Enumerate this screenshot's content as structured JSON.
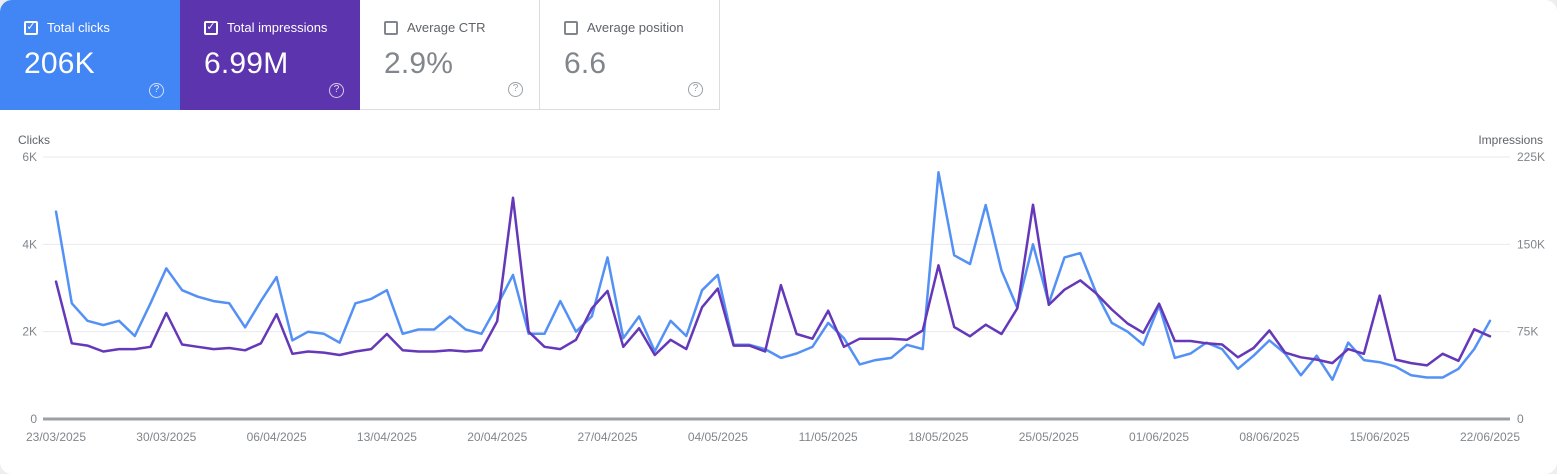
{
  "widget": "search-performance",
  "metrics": [
    {
      "label": "Total clicks",
      "value": "206K",
      "checked": true,
      "bg": "#4285f4"
    },
    {
      "label": "Total impressions",
      "value": "6.99M",
      "checked": true,
      "bg": "#5c34ad"
    },
    {
      "label": "Average CTR",
      "value": "2.9%",
      "checked": false,
      "bg": "#ffffff"
    },
    {
      "label": "Average position",
      "value": "6.6",
      "checked": false,
      "bg": "#ffffff"
    }
  ],
  "help_icon_glyph": "?",
  "checkbox_check_glyph": "✓",
  "colors": {
    "clicks_line": "#5491f5",
    "impressions_line": "#6438b8",
    "gridline": "#e8eaed",
    "baseline": "#9aa0a6",
    "tick_label": "#80868b",
    "axis_title": "#5f6368"
  },
  "chart_data": {
    "type": "line",
    "title": "",
    "x_unit": "day",
    "x_start_date": "23/03/2025",
    "x_end_date": "22/06/2025",
    "x_tick_labels": [
      "23/03/2025",
      "30/03/2025",
      "06/04/2025",
      "13/04/2025",
      "20/04/2025",
      "27/04/2025",
      "04/05/2025",
      "11/05/2025",
      "18/05/2025",
      "25/05/2025",
      "01/06/2025",
      "08/06/2025",
      "15/06/2025",
      "22/06/2025"
    ],
    "x_tick_interval_days": 7,
    "grid": true,
    "legend_position": "tiles",
    "left_axis": {
      "label": "Clicks",
      "ticks": [
        "0",
        "2K",
        "4K",
        "6K"
      ],
      "min": 0,
      "max": 6000
    },
    "right_axis": {
      "label": "Impressions",
      "ticks": [
        "0",
        "75K",
        "150K",
        "225K"
      ],
      "min": 0,
      "max": 225000
    },
    "series": [
      {
        "name": "Total clicks",
        "axis": "left",
        "color": "#5491f5",
        "values": [
          4750,
          2650,
          2250,
          2150,
          2250,
          1900,
          2650,
          3450,
          2950,
          2800,
          2700,
          2650,
          2100,
          2700,
          3250,
          1800,
          2000,
          1950,
          1750,
          2650,
          2750,
          2950,
          1950,
          2050,
          2050,
          2350,
          2050,
          1950,
          2600,
          3300,
          1950,
          1950,
          2700,
          2000,
          2350,
          3700,
          1850,
          2350,
          1550,
          2250,
          1900,
          2950,
          3300,
          1700,
          1700,
          1600,
          1400,
          1500,
          1650,
          2200,
          1850,
          1250,
          1350,
          1400,
          1700,
          1600,
          5650,
          3750,
          3550,
          4900,
          3400,
          2550,
          4000,
          2650,
          3700,
          3800,
          2900,
          2200,
          2000,
          1700,
          2600,
          1400,
          1500,
          1750,
          1600,
          1150,
          1450,
          1800,
          1500,
          1000,
          1450,
          900,
          1750,
          1350,
          1300,
          1200,
          1000,
          950,
          950,
          1150,
          1600,
          2250
        ]
      },
      {
        "name": "Total impressions",
        "axis": "right",
        "color": "#6438b8",
        "values": [
          118000,
          65000,
          63000,
          58000,
          60000,
          60000,
          62000,
          91000,
          64000,
          62000,
          60000,
          61000,
          59000,
          65000,
          90000,
          56000,
          58000,
          57000,
          55000,
          58000,
          60000,
          73000,
          59000,
          58000,
          58000,
          59000,
          58000,
          59000,
          84000,
          190000,
          75000,
          62000,
          60000,
          68000,
          95000,
          110000,
          62000,
          78000,
          55000,
          68000,
          60000,
          96000,
          112000,
          63000,
          63000,
          58000,
          115000,
          73000,
          69000,
          93000,
          62000,
          69000,
          69000,
          69000,
          68000,
          76000,
          132000,
          79000,
          71000,
          81000,
          73000,
          95000,
          184000,
          98000,
          111000,
          119000,
          108000,
          94000,
          82000,
          74000,
          99000,
          67000,
          67000,
          65000,
          64000,
          53000,
          61000,
          76000,
          57000,
          53000,
          51000,
          48000,
          60000,
          56000,
          106000,
          51000,
          48000,
          46000,
          56000,
          50000,
          77000,
          71000
        ]
      }
    ]
  }
}
